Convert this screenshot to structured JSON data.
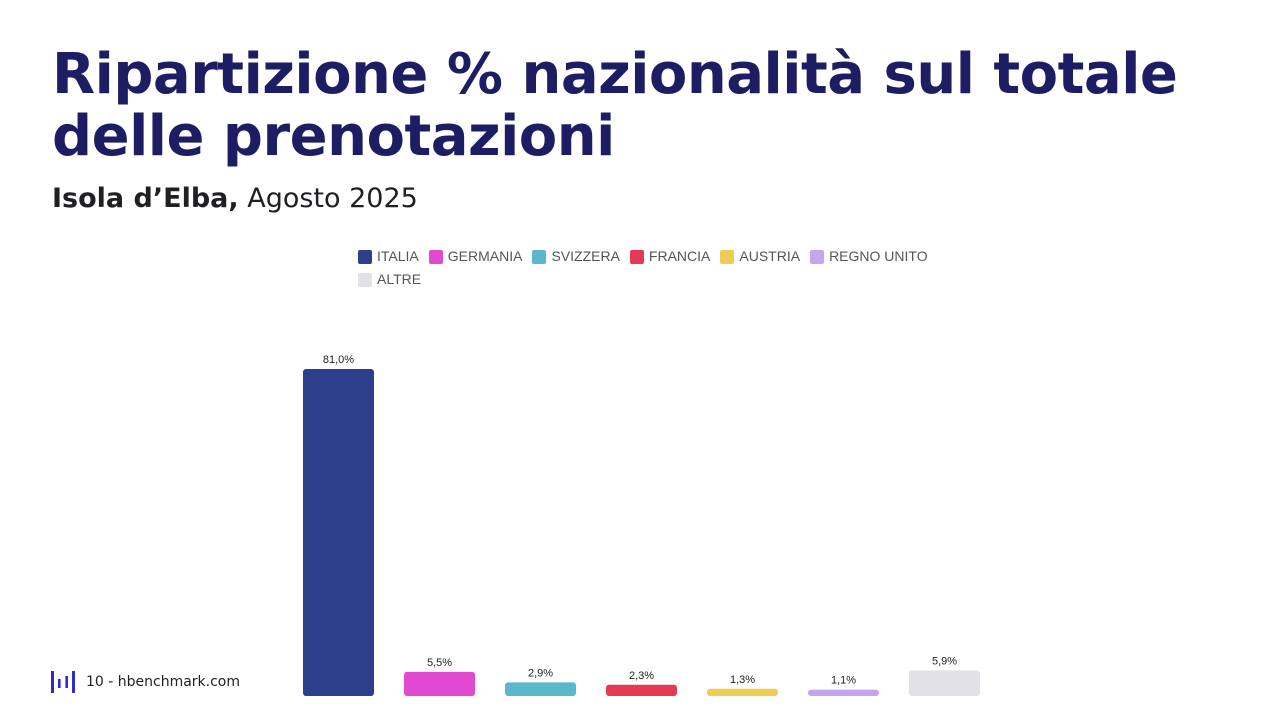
{
  "header": {
    "title": "Ripartizione % nazionalità sul totale delle prenotazioni",
    "subtitle_bold": "Isola d’Elba,",
    "subtitle_rest": "Agosto 2025"
  },
  "chart_data": {
    "type": "bar",
    "categories": [
      "ITALIA",
      "GERMANIA",
      "SVIZZERA",
      "FRANCIA",
      "AUSTRIA",
      "REGNO UNITO",
      "ALTRE"
    ],
    "values": [
      81.0,
      5.5,
      2.9,
      2.3,
      1.3,
      1.1,
      5.9
    ],
    "value_labels": [
      "81,0%",
      "5,5%",
      "2,9%",
      "2,3%",
      "1,3%",
      "1,1%",
      "5,9%"
    ],
    "colors": [
      "#2d3e8a",
      "#e04ad0",
      "#5ab8cc",
      "#e33b55",
      "#f0cc55",
      "#c3a6ec",
      "#e1e1e6"
    ],
    "ylim": [
      0,
      81
    ],
    "legend_position": "top",
    "grid": false,
    "xlabel": "",
    "ylabel": ""
  },
  "footer": {
    "text": "10 - hbenchmark.com",
    "logo_icon": "hbenchmark-logo-icon",
    "logo_color": "#2b2bd0"
  }
}
